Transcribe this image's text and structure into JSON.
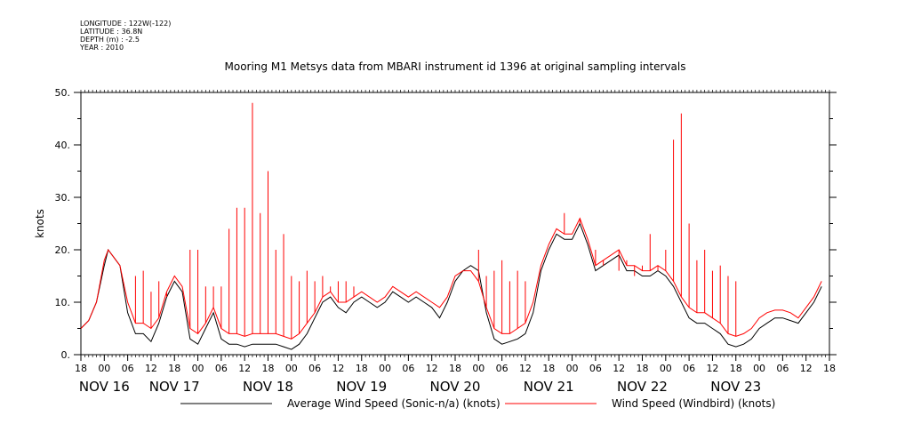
{
  "header": {
    "longitude": "LONGITUDE : 122W(-122)",
    "latitude": "LATITUDE : 36.8N",
    "depth": "DEPTH (m) : -2.5",
    "year": "YEAR : 2010"
  },
  "chart_data": {
    "type": "line",
    "title": "Mooring M1 Metsys data from MBARI instrument id 1396 at original sampling intervals",
    "xlabel": "",
    "ylabel": "knots",
    "xlim": [
      -6,
      186
    ],
    "ylim": [
      0,
      50
    ],
    "y_ticks": [
      0,
      10,
      20,
      30,
      40,
      50
    ],
    "y_tick_labels": [
      "0.",
      "10.",
      "20.",
      "30.",
      "40.",
      "50."
    ],
    "x_hour_ticks": [
      {
        "h": -6,
        "label": "18"
      },
      {
        "h": 0,
        "label": "00"
      },
      {
        "h": 6,
        "label": "06"
      },
      {
        "h": 12,
        "label": "12"
      },
      {
        "h": 18,
        "label": "18"
      },
      {
        "h": 24,
        "label": "00"
      },
      {
        "h": 30,
        "label": "06"
      },
      {
        "h": 36,
        "label": "12"
      },
      {
        "h": 42,
        "label": "18"
      },
      {
        "h": 48,
        "label": "00"
      },
      {
        "h": 54,
        "label": "06"
      },
      {
        "h": 60,
        "label": "12"
      },
      {
        "h": 66,
        "label": "18"
      },
      {
        "h": 72,
        "label": "00"
      },
      {
        "h": 78,
        "label": "06"
      },
      {
        "h": 84,
        "label": "12"
      },
      {
        "h": 90,
        "label": "18"
      },
      {
        "h": 96,
        "label": "00"
      },
      {
        "h": 102,
        "label": "06"
      },
      {
        "h": 108,
        "label": "12"
      },
      {
        "h": 114,
        "label": "18"
      },
      {
        "h": 120,
        "label": "00"
      },
      {
        "h": 126,
        "label": "06"
      },
      {
        "h": 132,
        "label": "12"
      },
      {
        "h": 138,
        "label": "18"
      },
      {
        "h": 144,
        "label": "00"
      },
      {
        "h": 150,
        "label": "06"
      },
      {
        "h": 156,
        "label": "12"
      },
      {
        "h": 162,
        "label": "18"
      },
      {
        "h": 168,
        "label": "00"
      },
      {
        "h": 174,
        "label": "06"
      },
      {
        "h": 180,
        "label": "12"
      },
      {
        "h": 186,
        "label": "18"
      }
    ],
    "x_day_labels": [
      {
        "h": 0,
        "label": "NOV 16"
      },
      {
        "h": 18,
        "label": "NOV 17"
      },
      {
        "h": 42,
        "label": "NOV 18"
      },
      {
        "h": 66,
        "label": "NOV 19"
      },
      {
        "h": 90,
        "label": "NOV 20"
      },
      {
        "h": 114,
        "label": "NOV 21"
      },
      {
        "h": 138,
        "label": "NOV 22"
      },
      {
        "h": 162,
        "label": "NOV 23"
      }
    ],
    "x_units": "hours since 00:00 Nov 16, 2010",
    "series": [
      {
        "name": "Average Wind Speed (Sonic-n/a) (knots)",
        "color": "#000000",
        "x": [
          -6,
          -4,
          -2,
          0,
          1,
          2,
          4,
          6,
          8,
          10,
          12,
          14,
          16,
          18,
          20,
          22,
          24,
          26,
          28,
          30,
          32,
          34,
          36,
          38,
          40,
          42,
          44,
          46,
          48,
          50,
          52,
          54,
          56,
          58,
          60,
          62,
          64,
          66,
          68,
          70,
          72,
          74,
          76,
          78,
          80,
          82,
          84,
          86,
          88,
          90,
          92,
          94,
          96,
          98,
          100,
          102,
          104,
          106,
          108,
          110,
          112,
          114,
          116,
          118,
          120,
          122,
          124,
          126,
          128,
          130,
          132,
          134,
          136,
          138,
          140,
          142,
          144,
          146,
          148,
          150,
          152,
          154,
          156,
          158,
          160,
          162,
          164,
          166,
          168,
          170,
          172,
          174,
          176,
          178,
          180,
          182,
          184
        ],
        "y": [
          5,
          6.5,
          10,
          17,
          20,
          19,
          17,
          8,
          4,
          4,
          2.5,
          6,
          11,
          14,
          12,
          3,
          2,
          5,
          8,
          3,
          2,
          2,
          1.5,
          2,
          2,
          2,
          2,
          1.5,
          1,
          2,
          4,
          7,
          10,
          11,
          9,
          8,
          10,
          11,
          10,
          9,
          10,
          12,
          11,
          10,
          11,
          10,
          9,
          7,
          10,
          14,
          16,
          17,
          16,
          8,
          3,
          2,
          2.5,
          3,
          4,
          8,
          16,
          20,
          23,
          22,
          22,
          25,
          21,
          16,
          17,
          18,
          19,
          16,
          16,
          15,
          15,
          16,
          15,
          13,
          10,
          7,
          6,
          6,
          5,
          4,
          2,
          1.5,
          2,
          3,
          5,
          6,
          7,
          7,
          6.5,
          6,
          8,
          10,
          13
        ]
      },
      {
        "name": "Wind Speed (Windbird) (knots)",
        "color": "#ff0000",
        "x": [
          -6,
          -4,
          -2,
          0,
          1,
          2,
          4,
          6,
          8,
          10,
          12,
          14,
          16,
          18,
          20,
          22,
          24,
          26,
          28,
          30,
          32,
          34,
          36,
          38,
          40,
          42,
          44,
          46,
          48,
          50,
          52,
          54,
          56,
          58,
          60,
          62,
          64,
          66,
          68,
          70,
          72,
          74,
          76,
          78,
          80,
          82,
          84,
          86,
          88,
          90,
          92,
          94,
          96,
          98,
          100,
          102,
          104,
          106,
          108,
          110,
          112,
          114,
          116,
          118,
          120,
          122,
          124,
          126,
          128,
          130,
          132,
          134,
          136,
          138,
          140,
          142,
          144,
          146,
          148,
          150,
          152,
          154,
          156,
          158,
          160,
          162,
          164,
          166,
          168,
          170,
          172,
          174,
          176,
          178,
          180,
          182,
          184
        ],
        "y": [
          5,
          6.5,
          10,
          18,
          20,
          19,
          17,
          10,
          6,
          6,
          5,
          7,
          12,
          15,
          13,
          5,
          4,
          6,
          9,
          5,
          4,
          4,
          3.5,
          4,
          4,
          4,
          4,
          3.5,
          3,
          4,
          6,
          8,
          11,
          12,
          10,
          10,
          11,
          12,
          11,
          10,
          11,
          13,
          12,
          11,
          12,
          11,
          10,
          9,
          11,
          15,
          16,
          16,
          14,
          9,
          5,
          4,
          4,
          5,
          6,
          10,
          17,
          21,
          24,
          23,
          23,
          26,
          22,
          17,
          18,
          19,
          20,
          17,
          17,
          16,
          16,
          17,
          16,
          14,
          11,
          9,
          8,
          8,
          7,
          6,
          4,
          3.5,
          4,
          5,
          7,
          8,
          8.5,
          8.5,
          8,
          7,
          9,
          11,
          14
        ]
      }
    ],
    "spikes": {
      "series": "Wind Speed (Windbird) (knots)",
      "x": [
        8,
        10,
        12,
        14,
        16,
        22,
        24,
        26,
        28,
        30,
        32,
        34,
        36,
        38,
        40,
        42,
        44,
        46,
        48,
        50,
        52,
        54,
        56,
        58,
        60,
        62,
        64,
        96,
        98,
        100,
        102,
        104,
        106,
        108,
        118,
        122,
        124,
        126,
        128,
        130,
        132,
        134,
        136,
        138,
        140,
        142,
        144,
        146,
        148,
        150,
        152,
        154,
        156,
        158,
        160,
        162
      ],
      "y": [
        15,
        16,
        12,
        14,
        11,
        20,
        20,
        13,
        13,
        13,
        24,
        28,
        28,
        48,
        27,
        35,
        20,
        23,
        15,
        14,
        16,
        14,
        15,
        13,
        14,
        14,
        13,
        20,
        15,
        16,
        18,
        14,
        16,
        14,
        27,
        25,
        22,
        20,
        17,
        19,
        16,
        18,
        15,
        17,
        23,
        16,
        20,
        41,
        46,
        25,
        18,
        20,
        16,
        17,
        15,
        14
      ]
    },
    "legend": {
      "placement": "bottom"
    },
    "grid": false
  }
}
